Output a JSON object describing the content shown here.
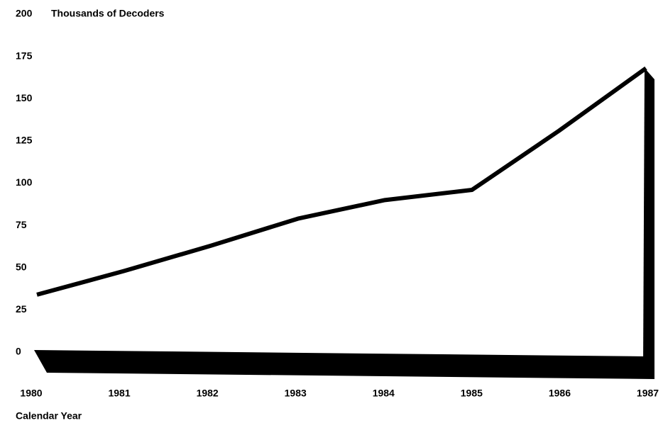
{
  "chart_data": {
    "type": "line",
    "y_axis_label": "Thousands of Decoders",
    "x_axis_label": "Calendar Year",
    "categories": [
      "1980",
      "1981",
      "1982",
      "1983",
      "1984",
      "1985",
      "1986",
      "1987"
    ],
    "series": [
      {
        "name": "Decoders",
        "color": "#000000",
        "values": [
          34,
          48,
          63,
          79,
          90,
          96,
          131,
          168
        ]
      }
    ],
    "ylim": [
      0,
      200
    ],
    "yticks": [
      0,
      25,
      50,
      75,
      100,
      125,
      150,
      175,
      200
    ],
    "grid": false
  }
}
